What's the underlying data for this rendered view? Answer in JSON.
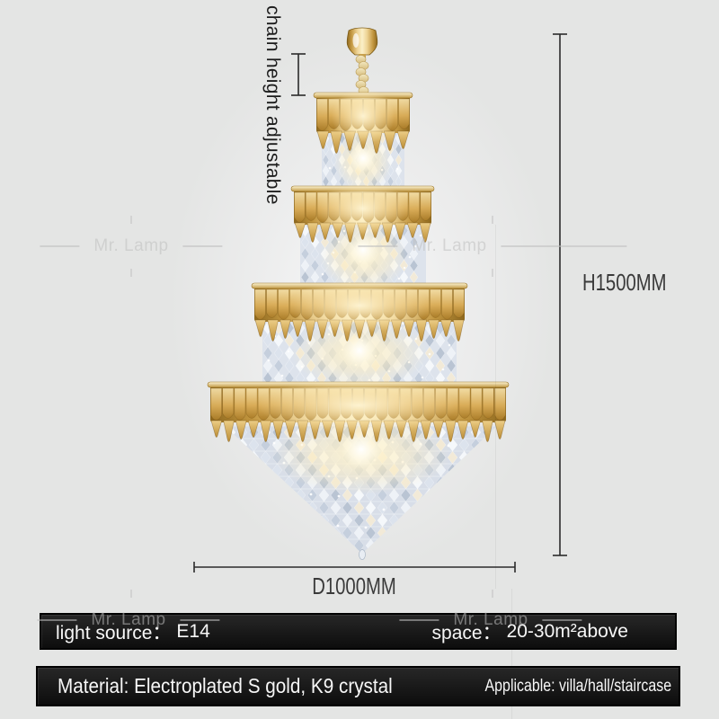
{
  "image_subject": "gold K9 crystal tiered chandelier",
  "background_color": "#e4e5e4",
  "watermark": {
    "text": "Mr. Lamp"
  },
  "annotations": {
    "chain_note": "chain height adjustable",
    "height_label": "H1500MM",
    "diameter_label": "D1000MM"
  },
  "spec_bar_primary": {
    "light_source_label": "light source：",
    "light_source_value": "E14",
    "space_label": "space：",
    "space_value": "20-30m²above"
  },
  "spec_bar_secondary": {
    "material_text": "Material: Electroplated S gold, K9 crystal",
    "applicable_text": "Applicable: villa/hall/staircase"
  },
  "colors": {
    "accent_gold": "#d8ab58",
    "crystal": "#dde3ec",
    "bar_background": "#141414",
    "bar_text": "#f7f7f7",
    "dimension_lines": "#2b2b2b",
    "annotation_text": "#3a3a3a"
  }
}
